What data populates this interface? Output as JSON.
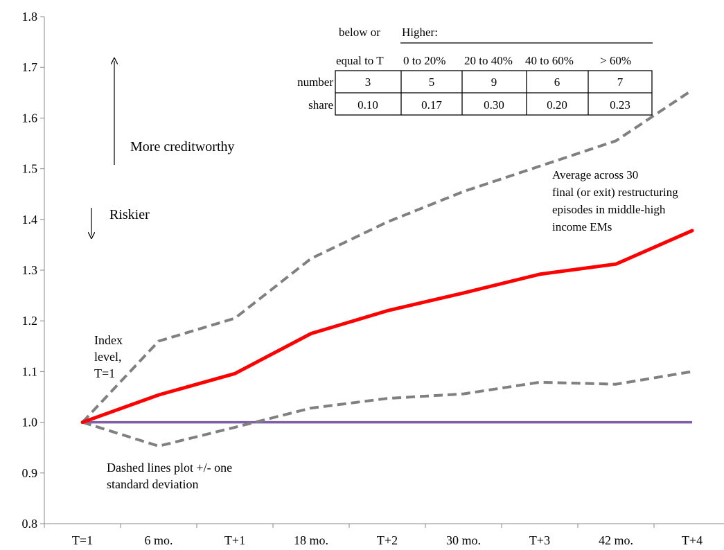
{
  "chart_data": {
    "type": "line",
    "categories": [
      "T=1",
      "6 mo.",
      "T+1",
      "18 mo.",
      "T+2",
      "30 mo.",
      "T+3",
      "42 mo.",
      "T+4"
    ],
    "ylim": [
      0.8,
      1.8
    ],
    "yticks": [
      "0.8",
      "0.9",
      "1.0",
      "1.1",
      "1.2",
      "1.3",
      "1.4",
      "1.5",
      "1.6",
      "1.7",
      "1.8"
    ],
    "series": [
      {
        "key": "average",
        "color": "#ff0000",
        "dashed": false,
        "values": [
          1.0,
          1.054,
          1.096,
          1.175,
          1.22,
          1.255,
          1.292,
          1.312,
          1.378
        ]
      },
      {
        "key": "upper",
        "color": "#808080",
        "dashed": true,
        "values": [
          1.0,
          1.16,
          1.205,
          1.323,
          1.395,
          1.455,
          1.505,
          1.555,
          1.655
        ]
      },
      {
        "key": "lower",
        "color": "#808080",
        "dashed": true,
        "values": [
          1.0,
          0.953,
          0.99,
          1.028,
          1.047,
          1.056,
          1.079,
          1.075,
          1.1
        ]
      },
      {
        "key": "baseline",
        "color": "#7f5fa8",
        "dashed": false,
        "values": [
          1.0,
          1.0,
          1.0,
          1.0,
          1.0,
          1.0,
          1.0,
          1.0,
          1.0
        ]
      }
    ],
    "grid": false,
    "annotations": {
      "more_creditworthy": "More creditworthy",
      "riskier": "Riskier",
      "index_level": [
        "Index",
        "level,",
        "T=1"
      ],
      "dashed_note": [
        "Dashed lines plot +/- one",
        "standard deviation"
      ],
      "average_note": [
        "Average across 30",
        "final (or exit) restructuring",
        "episodes in middle-high",
        "income EMs"
      ]
    },
    "table": {
      "header_top": [
        "below or",
        "Higher:"
      ],
      "header_cols": [
        "equal to T",
        "0 to 20%",
        "20 to 40%",
        "40 to 60%",
        "> 60%"
      ],
      "rows": [
        {
          "label": "number",
          "values": [
            "3",
            "5",
            "9",
            "6",
            "7"
          ]
        },
        {
          "label": "share",
          "values": [
            "0.10",
            "0.17",
            "0.30",
            "0.20",
            "0.23"
          ]
        }
      ]
    }
  }
}
